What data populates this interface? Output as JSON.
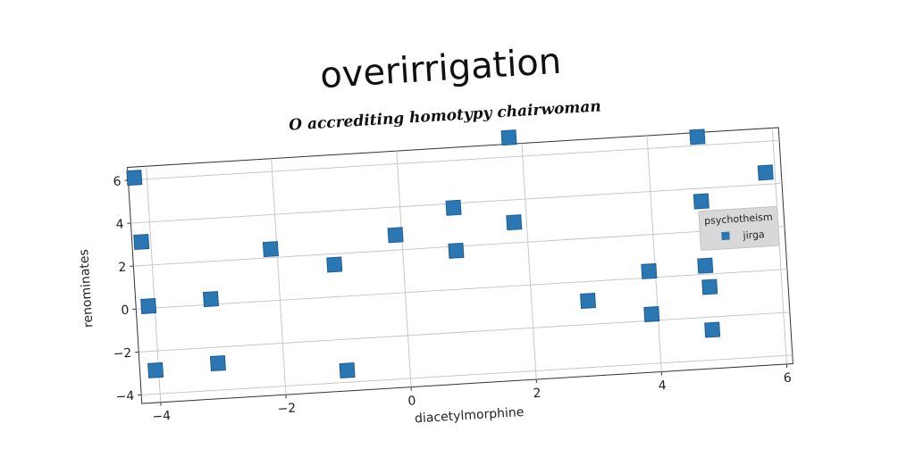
{
  "chart_data": {
    "type": "scatter",
    "title": "overirrigation",
    "subtitle": "O accrediting homotypy chairwoman",
    "xlabel": "diacetylmorphine",
    "ylabel": "renominates",
    "xlim": [
      -4.3,
      6.1
    ],
    "ylim": [
      -4.4,
      6.6
    ],
    "x_ticks": [
      -4,
      -2,
      0,
      2,
      4,
      6
    ],
    "y_ticks": [
      -4,
      -2,
      0,
      2,
      4,
      6
    ],
    "x_tick_labels": [
      "−4",
      "−2",
      "0",
      "2",
      "4",
      "6"
    ],
    "y_tick_labels": [
      "−4",
      "−2",
      "0",
      "2",
      "4",
      "6"
    ],
    "grid": true,
    "legend": {
      "title": "psychotheism",
      "placement": "right",
      "entries": [
        "jirga"
      ]
    },
    "colors": {
      "series": "#2a77b4"
    },
    "series": [
      {
        "name": "jirga",
        "marker": "square",
        "x": [
          -4.2,
          -4.15,
          -4.1,
          -4.05,
          -3.1,
          -3.05,
          -2.1,
          -1.1,
          -1.0,
          -0.1,
          0.85,
          0.85,
          1.8,
          1.8,
          2.9,
          3.9,
          3.9,
          4.8,
          4.8,
          4.8,
          4.85,
          4.85,
          5.85
        ],
        "y": [
          6.1,
          3.1,
          0.1,
          -2.9,
          0.25,
          -2.75,
          2.4,
          1.5,
          -3.45,
          2.7,
          3.8,
          1.8,
          6.9,
          2.95,
          -0.9,
          0.3,
          -1.7,
          6.4,
          3.4,
          0.4,
          -0.6,
          -2.6,
          4.55
        ]
      }
    ]
  }
}
